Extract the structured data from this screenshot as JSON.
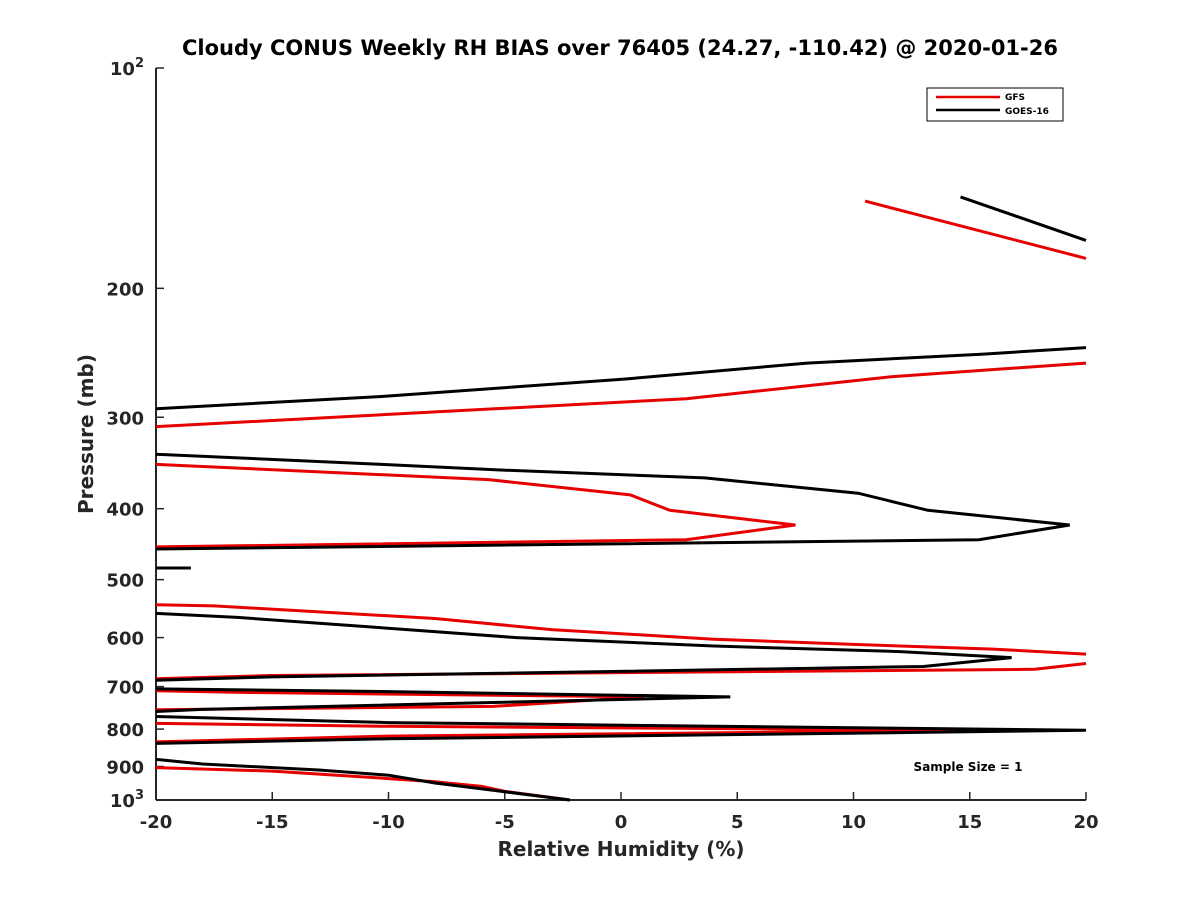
{
  "chart_data": {
    "type": "line",
    "title": "Cloudy CONUS Weekly RH BIAS over 76405 (24.27, -110.42) @ 2020-01-26",
    "xlabel": "Relative Humidity (%)",
    "ylabel": "Pressure (mb)",
    "xlim": [
      -20,
      20
    ],
    "ylim": [
      100,
      1000
    ],
    "yscale": "log",
    "y_reversed": true,
    "grid": false,
    "xticks": [
      -20,
      -15,
      -10,
      -5,
      0,
      5,
      10,
      15,
      20
    ],
    "xtick_labels": [
      "-20",
      "-15",
      "-10",
      "-5",
      "0",
      "5",
      "10",
      "15",
      "20"
    ],
    "yticks": [
      {
        "value": 100,
        "base": "10",
        "exp": "2"
      },
      {
        "value": 200,
        "label": "200"
      },
      {
        "value": 300,
        "label": "300"
      },
      {
        "value": 400,
        "label": "400"
      },
      {
        "value": 500,
        "label": "500"
      },
      {
        "value": 600,
        "label": "600"
      },
      {
        "value": 700,
        "label": "700"
      },
      {
        "value": 800,
        "label": "800"
      },
      {
        "value": 900,
        "label": "900"
      },
      {
        "value": 1000,
        "base": "10",
        "exp": "3"
      }
    ],
    "legend_position": "top-right",
    "annotation": "Sample Size = 1",
    "series": [
      {
        "name": "GFS",
        "color": "#e60000",
        "segments": [
          [
            [
              10.5,
              152
            ],
            [
              20,
              182
            ]
          ],
          [
            [
              20,
              253
            ],
            [
              11.7,
              264
            ],
            [
              2.8,
              283
            ],
            [
              -20,
              309
            ]
          ],
          [
            [
              -20,
              348
            ],
            [
              -5.7,
              365
            ],
            [
              0.4,
              383
            ],
            [
              2.1,
              402
            ],
            [
              7.5,
              421
            ],
            [
              2.8,
              441
            ],
            [
              -20,
              451
            ]
          ],
          [
            [
              -20,
              541
            ],
            [
              -17.5,
              543
            ],
            [
              -8,
              565
            ],
            [
              -3,
              585
            ],
            [
              4,
              603
            ],
            [
              10,
              613
            ],
            [
              16,
              622
            ],
            [
              20,
              632
            ]
          ],
          [
            [
              20,
              651
            ],
            [
              17.8,
              663
            ],
            [
              -15,
              676
            ],
            [
              -20,
              683
            ]
          ],
          [
            [
              -20,
              709
            ],
            [
              -16,
              713
            ],
            [
              1,
              723
            ],
            [
              -5.5,
              745
            ],
            [
              -20,
              753
            ]
          ],
          [
            [
              -20,
              786
            ],
            [
              -10,
              793
            ],
            [
              15,
              803
            ],
            [
              -10,
              818
            ],
            [
              -20,
              833
            ]
          ],
          [
            [
              -20,
              903
            ],
            [
              -15,
              913
            ],
            [
              -10,
              935
            ],
            [
              -8,
              944
            ],
            [
              -6,
              958
            ],
            [
              -5,
              973
            ],
            [
              -2.2,
              1000
            ]
          ]
        ]
      },
      {
        "name": "GOES-16",
        "color": "#000000",
        "segments": [
          [
            [
              14.6,
              150
            ],
            [
              20,
              172
            ]
          ],
          [
            [
              20,
              241
            ],
            [
              15.5,
              246
            ],
            [
              8,
              253
            ],
            [
              0.2,
              266
            ],
            [
              -10.3,
              281
            ],
            [
              -20,
              292
            ]
          ],
          [
            [
              -20,
              337
            ],
            [
              -10.3,
              348
            ],
            [
              -5.3,
              354
            ],
            [
              3.6,
              363
            ],
            [
              10.2,
              381
            ],
            [
              13.2,
              402
            ],
            [
              19.3,
              421
            ],
            [
              15.4,
              441
            ],
            [
              -20,
              454
            ]
          ],
          [
            [
              -20,
              482
            ],
            [
              -18.5,
              482
            ]
          ],
          [
            [
              -20,
              556
            ],
            [
              -16.5,
              563
            ],
            [
              -10.5,
              581
            ],
            [
              -4.5,
              600
            ],
            [
              4,
              616
            ],
            [
              12,
              627
            ],
            [
              16.8,
              639
            ],
            [
              13,
              657
            ],
            [
              -15,
              679
            ],
            [
              -20,
              686
            ]
          ],
          [
            [
              -20,
              705
            ],
            [
              -10,
              711
            ],
            [
              4.7,
              723
            ],
            [
              -18,
              752
            ],
            [
              -20,
              757
            ]
          ],
          [
            [
              -20,
              769
            ],
            [
              -10,
              784
            ],
            [
              20,
              803
            ],
            [
              -10,
              825
            ],
            [
              -20,
              837
            ]
          ],
          [
            [
              -20,
              880
            ],
            [
              -18,
              893
            ],
            [
              -13,
              910
            ],
            [
              -10,
              925
            ],
            [
              -8,
              948
            ],
            [
              -5.5,
              970
            ],
            [
              -2.2,
              1000
            ]
          ]
        ]
      }
    ]
  }
}
